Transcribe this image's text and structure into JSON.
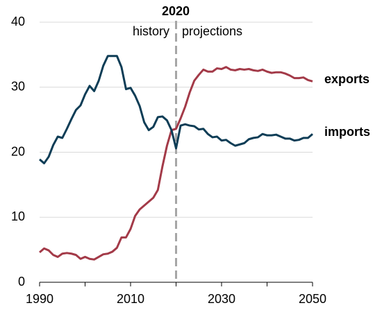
{
  "chart_data": {
    "type": "line",
    "x": [
      1990,
      1991,
      1992,
      1993,
      1994,
      1995,
      1996,
      1997,
      1998,
      1999,
      2000,
      2001,
      2002,
      2003,
      2004,
      2005,
      2006,
      2007,
      2008,
      2009,
      2010,
      2011,
      2012,
      2013,
      2014,
      2015,
      2016,
      2017,
      2018,
      2019,
      2020,
      2021,
      2022,
      2023,
      2024,
      2025,
      2026,
      2027,
      2028,
      2029,
      2030,
      2031,
      2032,
      2033,
      2034,
      2035,
      2036,
      2037,
      2038,
      2039,
      2040,
      2041,
      2042,
      2043,
      2044,
      2045,
      2046,
      2047,
      2048,
      2049,
      2050
    ],
    "series": [
      {
        "name": "exports",
        "color": "#a33a48",
        "values": [
          4.6,
          5.2,
          4.9,
          4.2,
          3.9,
          4.4,
          4.5,
          4.4,
          4.2,
          3.6,
          3.9,
          3.6,
          3.5,
          3.9,
          4.3,
          4.4,
          4.7,
          5.3,
          6.9,
          6.9,
          8.2,
          10.2,
          11.2,
          11.8,
          12.4,
          13.0,
          14.2,
          17.8,
          21.0,
          23.4,
          23.6,
          25.2,
          27.0,
          29.2,
          31.0,
          31.9,
          32.7,
          32.4,
          32.4,
          32.9,
          32.8,
          33.1,
          32.7,
          32.6,
          32.8,
          32.7,
          32.8,
          32.6,
          32.5,
          32.7,
          32.4,
          32.2,
          32.3,
          32.3,
          32.1,
          31.8,
          31.4,
          31.4,
          31.5,
          31.1,
          30.9
        ]
      },
      {
        "name": "imports",
        "color": "#0e3d56",
        "values": [
          18.9,
          18.3,
          19.3,
          21.1,
          22.4,
          22.2,
          23.6,
          25.1,
          26.5,
          27.2,
          28.9,
          30.2,
          29.4,
          31.0,
          33.3,
          34.8,
          34.8,
          34.8,
          33.1,
          29.7,
          29.9,
          28.7,
          27.1,
          24.6,
          23.4,
          23.9,
          25.4,
          25.5,
          24.9,
          23.4,
          20.6,
          24.1,
          24.3,
          24.1,
          24.0,
          23.5,
          23.6,
          22.8,
          22.3,
          22.4,
          21.8,
          21.9,
          21.4,
          21.0,
          21.2,
          21.4,
          22.0,
          22.2,
          22.3,
          22.8,
          22.6,
          22.6,
          22.7,
          22.4,
          22.1,
          22.1,
          21.8,
          21.9,
          22.2,
          22.2,
          22.8
        ]
      }
    ],
    "xlim": [
      1990,
      2050
    ],
    "xticks": [
      1990,
      2010,
      2030,
      2050
    ],
    "xminorticks": [
      2000,
      2020,
      2040
    ],
    "ylim": [
      0,
      40
    ],
    "yticks": [
      0,
      10,
      20,
      30,
      40
    ],
    "grid": true,
    "divider": {
      "x": 2020,
      "label": "2020",
      "left_label": "history",
      "right_label": "projections"
    }
  }
}
